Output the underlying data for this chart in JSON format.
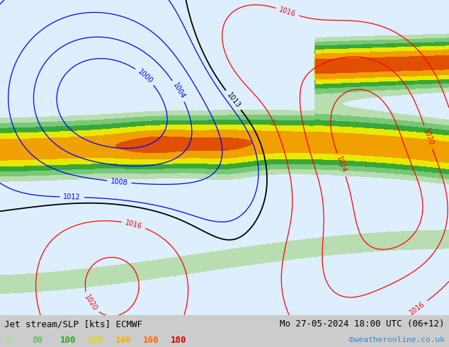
{
  "title_left": "Jet stream/SLP [kts] ECMWF",
  "title_right": "Mo 27-05-2024 18:00 UTC (06+12)",
  "credit": "©weatheronline.co.uk",
  "legend_values": [
    "60",
    "80",
    "100",
    "120",
    "140",
    "160",
    "180"
  ],
  "legend_colors": [
    "#aaddaa",
    "#66bb66",
    "#22aa22",
    "#dddd00",
    "#ffaa00",
    "#ff6600",
    "#dd0000"
  ],
  "bg_color": "#cccccc",
  "map_bg": "#ddeeff",
  "figsize": [
    6.34,
    4.9
  ],
  "dpi": 100,
  "bottom_bar_height": 0.092,
  "lon_min": -45,
  "lon_max": 55,
  "lat_min": 25,
  "lat_max": 73
}
